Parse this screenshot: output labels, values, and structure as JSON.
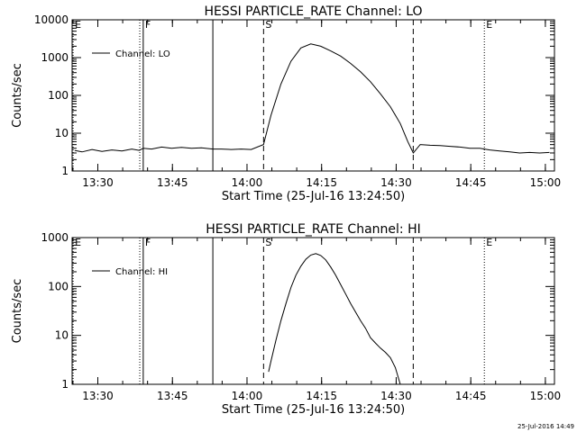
{
  "timestamp": "25-Jul-2016 14:49",
  "chart_data": [
    {
      "type": "line",
      "title": "HESSI PARTICLE_RATE Channel: LO",
      "xlabel": "Start Time (25-Jul-16 13:24:50)",
      "ylabel": "Counts/sec",
      "x_unit": "minutes after 13:24:50",
      "xlim": [
        0,
        97
      ],
      "ylim": [
        1,
        10000
      ],
      "yscale": "log",
      "grid": false,
      "legend_position": "top-left",
      "x_ticks": [
        {
          "value": 5.17,
          "label": "13:30"
        },
        {
          "value": 20.17,
          "label": "13:45"
        },
        {
          "value": 35.17,
          "label": "14:00"
        },
        {
          "value": 50.17,
          "label": "14:15"
        },
        {
          "value": 65.17,
          "label": "14:30"
        },
        {
          "value": 80.17,
          "label": "14:45"
        },
        {
          "value": 95.17,
          "label": "15:00"
        }
      ],
      "y_ticks": [
        {
          "value": 1,
          "label": "1"
        },
        {
          "value": 10,
          "label": "10"
        },
        {
          "value": 100,
          "label": "100"
        },
        {
          "value": 1000,
          "label": "1000"
        },
        {
          "value": 10000,
          "label": "10000"
        }
      ],
      "markers": [
        {
          "x": 0.2,
          "label": "E",
          "style": "dotted"
        },
        {
          "x": 13.6,
          "label": "",
          "style": "dotted"
        },
        {
          "x": 14.3,
          "label": "F",
          "style": "solid"
        },
        {
          "x": 28.3,
          "label": "",
          "style": "solid"
        },
        {
          "x": 38.5,
          "label": "S",
          "style": "dashed"
        },
        {
          "x": 68.6,
          "label": "",
          "style": "dashed"
        },
        {
          "x": 82.9,
          "label": "E",
          "style": "dotted"
        },
        {
          "x": 97.0,
          "label": "",
          "style": "dotted"
        }
      ],
      "series": [
        {
          "name": "Channel: LO",
          "style": "solid",
          "x": [
            0.5,
            2,
            4,
            6,
            8,
            10,
            12,
            13.5,
            14.3,
            16,
            18,
            20,
            22,
            24,
            26,
            28.3,
            30,
            32,
            34,
            36,
            38.5,
            40,
            42,
            44,
            46,
            48,
            50,
            52,
            54,
            56,
            58,
            60,
            62,
            64,
            66,
            67.5,
            68.6,
            70,
            72,
            74,
            76,
            78,
            80,
            82,
            84,
            86,
            88,
            90,
            92,
            94,
            96
          ],
          "y": [
            3.5,
            3.2,
            3.7,
            3.3,
            3.6,
            3.4,
            3.8,
            3.5,
            4.0,
            3.8,
            4.3,
            4.0,
            4.2,
            4.0,
            4.1,
            3.8,
            3.8,
            3.7,
            3.8,
            3.7,
            5,
            30,
            200,
            800,
            1800,
            2300,
            2000,
            1500,
            1100,
            700,
            420,
            230,
            110,
            50,
            18,
            6,
            3,
            5,
            4.8,
            4.7,
            4.5,
            4.3,
            4.0,
            4.0,
            3.6,
            3.4,
            3.2,
            3.0,
            3.1,
            3.0,
            3.1
          ]
        }
      ]
    },
    {
      "type": "line",
      "title": "HESSI PARTICLE_RATE Channel: HI",
      "xlabel": "Start Time (25-Jul-16 13:24:50)",
      "ylabel": "Counts/sec",
      "x_unit": "minutes after 13:24:50",
      "xlim": [
        0,
        97
      ],
      "ylim": [
        1,
        1000
      ],
      "yscale": "log",
      "grid": false,
      "legend_position": "top-left",
      "x_ticks": [
        {
          "value": 5.17,
          "label": "13:30"
        },
        {
          "value": 20.17,
          "label": "13:45"
        },
        {
          "value": 35.17,
          "label": "14:00"
        },
        {
          "value": 50.17,
          "label": "14:15"
        },
        {
          "value": 65.17,
          "label": "14:30"
        },
        {
          "value": 80.17,
          "label": "14:45"
        },
        {
          "value": 95.17,
          "label": "15:00"
        }
      ],
      "y_ticks": [
        {
          "value": 1,
          "label": "1"
        },
        {
          "value": 10,
          "label": "10"
        },
        {
          "value": 100,
          "label": "100"
        },
        {
          "value": 1000,
          "label": "1000"
        }
      ],
      "markers": [
        {
          "x": 0.2,
          "label": "E",
          "style": "dotted"
        },
        {
          "x": 13.6,
          "label": "",
          "style": "dotted"
        },
        {
          "x": 14.3,
          "label": "F",
          "style": "solid"
        },
        {
          "x": 28.3,
          "label": "",
          "style": "solid"
        },
        {
          "x": 38.5,
          "label": "S",
          "style": "dashed"
        },
        {
          "x": 68.6,
          "label": "",
          "style": "dashed"
        },
        {
          "x": 82.9,
          "label": "E",
          "style": "dotted"
        },
        {
          "x": 97.0,
          "label": "",
          "style": "dotted"
        }
      ],
      "series": [
        {
          "name": "Channel: HI",
          "style": "solid",
          "x": [
            39.5,
            40,
            41,
            42,
            43,
            44,
            45,
            46,
            47,
            48,
            49,
            50,
            51,
            52,
            53,
            54,
            55,
            56,
            57,
            58,
            59,
            60,
            61,
            62,
            63,
            64,
            65,
            66
          ],
          "y": [
            1.8,
            3,
            8,
            20,
            45,
            95,
            170,
            260,
            360,
            440,
            470,
            430,
            350,
            250,
            170,
            110,
            70,
            45,
            30,
            20,
            14,
            9,
            7,
            5.5,
            4.5,
            3.5,
            2.2,
            1
          ]
        }
      ]
    }
  ]
}
